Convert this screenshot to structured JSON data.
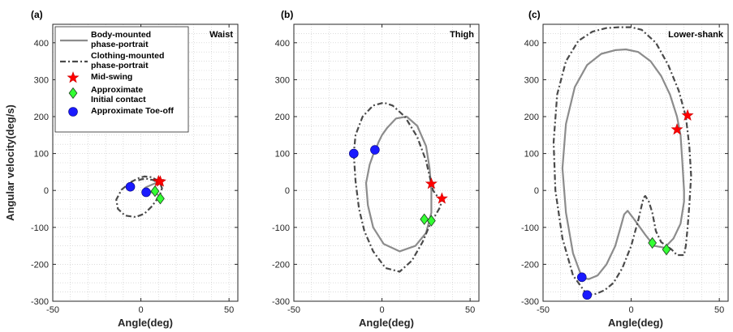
{
  "chart_data": [
    {
      "type": "line",
      "panel_label": "(a)",
      "inset_label": "Waist",
      "xlabel": "Angle(deg)",
      "ylabel": "Angular velocity(deg/s)",
      "xlim": [
        -50,
        55
      ],
      "ylim": [
        -300,
        450
      ],
      "xticks": [
        -50,
        0,
        50
      ],
      "yticks": [
        -300,
        -200,
        -100,
        0,
        100,
        200,
        300,
        400
      ],
      "grid": "dotted",
      "legend_position": "top-left",
      "series": [
        {
          "key": "body",
          "x": [
            10,
            9,
            7,
            5,
            3,
            2,
            3,
            6,
            9,
            11,
            12,
            12,
            11,
            10
          ],
          "y": [
            25,
            21,
            17,
            13,
            9,
            5,
            0,
            -5,
            -10,
            -15,
            -20,
            -23,
            -20,
            -12
          ]
        },
        {
          "key": "clothing",
          "x": [
            10,
            6,
            2,
            -1,
            -6,
            -11,
            -14,
            -13,
            -9,
            -3,
            2,
            6,
            9,
            11,
            12,
            11,
            7,
            3,
            0,
            -2
          ],
          "y": [
            26,
            36,
            38,
            34,
            22,
            2,
            -25,
            -50,
            -68,
            -72,
            -63,
            -44,
            -25,
            -8,
            6,
            18,
            28,
            32,
            30,
            26
          ]
        }
      ],
      "markers": [
        {
          "type": "mid_swing",
          "x": 10,
          "y": 25
        },
        {
          "type": "mid_swing",
          "x": 11,
          "y": 24
        },
        {
          "type": "initial_contact",
          "x": 8,
          "y": -2
        },
        {
          "type": "initial_contact",
          "x": 11,
          "y": -22
        },
        {
          "type": "toe_off",
          "x": -6,
          "y": 10
        },
        {
          "type": "toe_off",
          "x": 3,
          "y": -5
        }
      ]
    },
    {
      "type": "line",
      "panel_label": "(b)",
      "inset_label": "Thigh",
      "xlabel": "Angle(deg)",
      "ylabel": "",
      "xlim": [
        -50,
        55
      ],
      "ylim": [
        -300,
        450
      ],
      "xticks": [
        -50,
        0,
        50
      ],
      "yticks": [
        -300,
        -200,
        -100,
        0,
        100,
        200,
        300,
        400
      ],
      "grid": "dotted",
      "series": [
        {
          "key": "body",
          "x": [
            -4,
            -7,
            -9,
            -8,
            -5,
            1,
            10,
            19,
            25,
            28,
            28,
            27,
            25,
            20,
            14,
            8,
            3,
            0,
            -2,
            -3,
            -4
          ],
          "y": [
            110,
            70,
            20,
            -40,
            -100,
            -145,
            -165,
            -150,
            -115,
            -60,
            0,
            60,
            120,
            175,
            200,
            195,
            170,
            150,
            130,
            118,
            110
          ]
        },
        {
          "key": "clothing",
          "x": [
            -16,
            -15,
            -13,
            -10,
            -5,
            2,
            10,
            17,
            23,
            27,
            28,
            30,
            33,
            34,
            32,
            29,
            28,
            25,
            20,
            13,
            6,
            1,
            -5,
            -11,
            -15,
            -16
          ],
          "y": [
            100,
            25,
            -50,
            -110,
            -165,
            -210,
            -220,
            -190,
            -140,
            -95,
            -85,
            -70,
            -45,
            -25,
            -20,
            0,
            18,
            80,
            145,
            200,
            230,
            238,
            230,
            200,
            150,
            100
          ]
        }
      ],
      "markers": [
        {
          "type": "mid_swing",
          "x": 28,
          "y": 18
        },
        {
          "type": "mid_swing",
          "x": 34,
          "y": -22
        },
        {
          "type": "initial_contact",
          "x": 24,
          "y": -78
        },
        {
          "type": "initial_contact",
          "x": 28,
          "y": -82
        },
        {
          "type": "toe_off",
          "x": -16,
          "y": 100
        },
        {
          "type": "toe_off",
          "x": -4,
          "y": 110
        }
      ]
    },
    {
      "type": "line",
      "panel_label": "(c)",
      "inset_label": "Lower-shank",
      "xlabel": "Angle(deg)",
      "ylabel": "",
      "xlim": [
        -50,
        55
      ],
      "ylim": [
        -300,
        450
      ],
      "xticks": [
        -50,
        0,
        50
      ],
      "yticks": [
        -300,
        -200,
        -100,
        0,
        100,
        200,
        300,
        400
      ],
      "grid": "dotted",
      "series": [
        {
          "key": "body",
          "x": [
            -28,
            -33,
            -37,
            -39,
            -37,
            -32,
            -25,
            -17,
            -9,
            -3,
            4,
            11,
            17,
            22,
            26,
            28,
            29,
            30,
            30,
            28,
            24,
            19,
            13,
            8,
            2,
            -2,
            -4,
            -6,
            -9,
            -14,
            -19,
            -24,
            -27,
            -28
          ],
          "y": [
            -235,
            -170,
            -60,
            60,
            180,
            280,
            340,
            370,
            380,
            382,
            375,
            350,
            310,
            260,
            200,
            150,
            80,
            0,
            -30,
            -90,
            -130,
            -155,
            -150,
            -120,
            -80,
            -55,
            -65,
            -100,
            -150,
            -200,
            -230,
            -240,
            -238,
            -235
          ]
        },
        {
          "key": "clothing",
          "x": [
            -25,
            -33,
            -39,
            -43,
            -44,
            -42,
            -37,
            -30,
            -22,
            -14,
            -7,
            0,
            6,
            14,
            21,
            27,
            31,
            33,
            34,
            33,
            32,
            31,
            30,
            26,
            23,
            20,
            17,
            14,
            12,
            10,
            8,
            7,
            6,
            4,
            0,
            -5,
            -10,
            -15,
            -20,
            -25
          ],
          "y": [
            -283,
            -230,
            -130,
            0,
            130,
            260,
            350,
            405,
            430,
            440,
            442,
            442,
            435,
            400,
            340,
            270,
            200,
            120,
            40,
            -40,
            -100,
            -150,
            -175,
            -175,
            -160,
            -150,
            -140,
            -110,
            -60,
            -30,
            -15,
            -20,
            -40,
            -80,
            -150,
            -210,
            -250,
            -270,
            -280,
            -283
          ]
        }
      ],
      "markers": [
        {
          "type": "mid_swing",
          "x": 26,
          "y": 165
        },
        {
          "type": "mid_swing",
          "x": 32,
          "y": 203
        },
        {
          "type": "initial_contact",
          "x": 12,
          "y": -142
        },
        {
          "type": "initial_contact",
          "x": 20,
          "y": -160
        },
        {
          "type": "toe_off",
          "x": -28,
          "y": -235
        },
        {
          "type": "toe_off",
          "x": -25,
          "y": -283
        }
      ]
    }
  ],
  "legend": {
    "entries": [
      {
        "key": "body",
        "lines": [
          "Body-mounted",
          "phase-portrait"
        ]
      },
      {
        "key": "clothing",
        "lines": [
          "Clothing-mounted",
          "phase-portrait"
        ]
      },
      {
        "key": "mid_swing",
        "lines": [
          "Mid-swing"
        ]
      },
      {
        "key": "initial_contact",
        "lines": [
          "Approximate",
          "Initial contact"
        ]
      },
      {
        "key": "toe_off",
        "lines": [
          "Approximate Toe-off"
        ]
      }
    ]
  },
  "colors": {
    "body_line": "#8c8c8c",
    "clothing_line": "#4a4a4a",
    "mid_swing": "#ff0000",
    "initial_contact": "#33ff33",
    "toe_off": "#1a1aff",
    "grid": "#c8c8c8",
    "axis": "#262626"
  }
}
